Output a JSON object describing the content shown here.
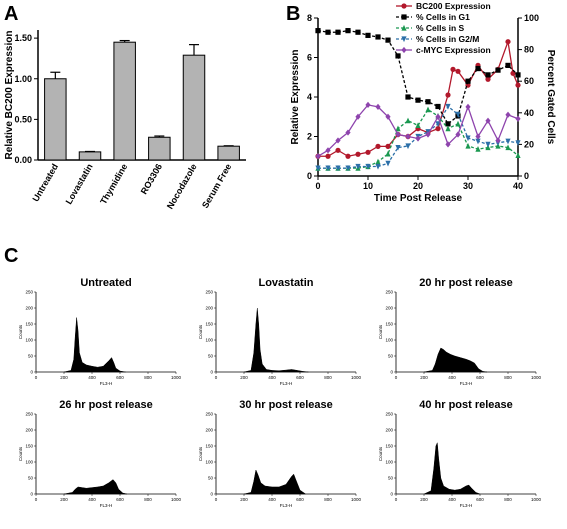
{
  "panel_labels": {
    "a": "A",
    "b": "B",
    "c": "C"
  },
  "chart_data": [
    {
      "type": "bar",
      "panel": "A",
      "categories": [
        "Untreated",
        "Lovastatin",
        "Thymidine",
        "RO3306",
        "Nocodazole",
        "Serum Free"
      ],
      "values": [
        1.0,
        0.1,
        1.45,
        0.28,
        1.29,
        0.17
      ],
      "errors": [
        0.08,
        0.005,
        0.02,
        0.015,
        0.13,
        0.005
      ],
      "ylabel": "Relative  BC200 Expression",
      "ylim": [
        0,
        1.6
      ],
      "yticks": [
        "0.00",
        "0.50",
        "1.00",
        "1.50"
      ],
      "colors": {
        "bar": "#b3b3b3",
        "stroke": "#000000"
      }
    },
    {
      "type": "line",
      "panel": "B",
      "xlabel": "Time Post Release",
      "ylabel_left": "Relative  Expression",
      "ylabel_right": "Percent Gated Cells",
      "xlim": [
        0,
        40
      ],
      "ylim_left": [
        0,
        8
      ],
      "ylim_right": [
        0,
        100
      ],
      "xticks": [
        "0",
        "10",
        "20",
        "30",
        "40"
      ],
      "yticks_left": [
        "0",
        "2",
        "4",
        "6",
        "8"
      ],
      "yticks_right": [
        "0",
        "20",
        "40",
        "60",
        "80",
        "100"
      ],
      "legend_position": "top-right",
      "series": [
        {
          "name": "BC200 Expression",
          "axis": "left",
          "color": "#b2182b",
          "marker": "circle",
          "x": [
            0,
            2,
            4,
            6,
            8,
            10,
            12,
            14,
            16,
            18,
            20,
            22,
            24,
            26,
            27,
            28,
            30,
            32,
            34,
            36,
            38,
            39,
            40
          ],
          "y": [
            1.0,
            1.0,
            1.3,
            1.0,
            1.1,
            1.2,
            1.5,
            1.5,
            2.1,
            2.0,
            2.4,
            2.2,
            2.4,
            4.1,
            5.4,
            5.3,
            4.6,
            5.6,
            4.9,
            5.4,
            6.8,
            5.2,
            4.6
          ]
        },
        {
          "name": "% Cells in G1",
          "axis": "right",
          "color": "#000000",
          "marker": "square",
          "x": [
            0,
            2,
            4,
            6,
            8,
            10,
            12,
            14,
            16,
            18,
            20,
            22,
            24,
            26,
            28,
            30,
            32,
            34,
            36,
            38,
            40
          ],
          "y": [
            92,
            91,
            91,
            92,
            91,
            89,
            88,
            86,
            76,
            50,
            48,
            47,
            44,
            33,
            38,
            60,
            68,
            64,
            67,
            70,
            64
          ]
        },
        {
          "name": "% Cells in S",
          "axis": "right",
          "color": "#1a9850",
          "marker": "triangle",
          "x": [
            0,
            2,
            4,
            6,
            8,
            10,
            12,
            14,
            16,
            18,
            20,
            22,
            24,
            26,
            28,
            30,
            32,
            34,
            36,
            38,
            40
          ],
          "y": [
            5,
            5,
            5,
            5,
            5,
            6,
            9,
            14,
            30,
            35,
            32,
            42,
            38,
            30,
            33,
            19,
            17,
            18,
            19,
            18,
            13
          ]
        },
        {
          "name": "% Cells in G2/M",
          "axis": "right",
          "color": "#2b6fa8",
          "marker": "triangle-down",
          "x": [
            0,
            2,
            4,
            6,
            8,
            10,
            12,
            14,
            16,
            18,
            20,
            22,
            24,
            26,
            28,
            30,
            32,
            34,
            36,
            38,
            40
          ],
          "y": [
            5,
            5,
            5,
            5,
            6,
            6,
            6,
            8,
            18,
            19,
            25,
            28,
            33,
            44,
            39,
            24,
            22,
            20,
            21,
            22,
            21
          ]
        },
        {
          "name": "c-MYC Expression",
          "axis": "left",
          "color": "#8e44ad",
          "marker": "diamond",
          "x": [
            0,
            2,
            4,
            6,
            8,
            10,
            12,
            14,
            16,
            18,
            20,
            22,
            24,
            26,
            28,
            30,
            32,
            34,
            36,
            38,
            40
          ],
          "y": [
            1.0,
            1.3,
            1.8,
            2.2,
            3.0,
            3.6,
            3.5,
            3.0,
            2.1,
            2.0,
            1.9,
            2.1,
            3.0,
            1.6,
            2.1,
            3.5,
            2.0,
            2.8,
            1.8,
            3.1,
            2.9
          ]
        }
      ]
    },
    {
      "type": "area",
      "panel": "C",
      "xlabel": "FL3-H",
      "ylabel": "Counts",
      "xlim": [
        0,
        1000
      ],
      "ylim": [
        0,
        250
      ],
      "xticks": [
        "0",
        "200",
        "400",
        "600",
        "800",
        "1000"
      ],
      "yticks": [
        "0",
        "50",
        "100",
        "150",
        "200",
        "250"
      ],
      "plots": [
        {
          "title": "Untreated",
          "points": [
            [
              200,
              0
            ],
            [
              250,
              5
            ],
            [
              270,
              40
            ],
            [
              280,
              110
            ],
            [
              290,
              170
            ],
            [
              300,
              130
            ],
            [
              310,
              60
            ],
            [
              330,
              30
            ],
            [
              360,
              22
            ],
            [
              400,
              18
            ],
            [
              440,
              15
            ],
            [
              480,
              18
            ],
            [
              520,
              35
            ],
            [
              540,
              45
            ],
            [
              555,
              30
            ],
            [
              570,
              12
            ],
            [
              600,
              3
            ],
            [
              640,
              0
            ]
          ]
        },
        {
          "title": "Lovastatin",
          "points": [
            [
              200,
              0
            ],
            [
              250,
              5
            ],
            [
              270,
              60
            ],
            [
              285,
              150
            ],
            [
              295,
              200
            ],
            [
              305,
              150
            ],
            [
              315,
              70
            ],
            [
              330,
              25
            ],
            [
              360,
              8
            ],
            [
              400,
              5
            ],
            [
              450,
              4
            ],
            [
              500,
              6
            ],
            [
              540,
              8
            ],
            [
              580,
              5
            ],
            [
              620,
              2
            ],
            [
              660,
              0
            ]
          ]
        },
        {
          "title": "20 hr post release",
          "points": [
            [
              200,
              0
            ],
            [
              260,
              5
            ],
            [
              280,
              25
            ],
            [
              300,
              55
            ],
            [
              320,
              75
            ],
            [
              340,
              70
            ],
            [
              360,
              62
            ],
            [
              390,
              55
            ],
            [
              420,
              50
            ],
            [
              460,
              45
            ],
            [
              500,
              40
            ],
            [
              530,
              35
            ],
            [
              560,
              28
            ],
            [
              590,
              10
            ],
            [
              620,
              2
            ],
            [
              650,
              0
            ]
          ]
        },
        {
          "title": "26 hr post release",
          "points": [
            [
              200,
              0
            ],
            [
              260,
              5
            ],
            [
              280,
              15
            ],
            [
              300,
              22
            ],
            [
              330,
              20
            ],
            [
              360,
              18
            ],
            [
              400,
              20
            ],
            [
              440,
              22
            ],
            [
              480,
              25
            ],
            [
              520,
              35
            ],
            [
              550,
              45
            ],
            [
              570,
              35
            ],
            [
              590,
              15
            ],
            [
              620,
              3
            ],
            [
              650,
              0
            ]
          ]
        },
        {
          "title": "30 hr post release",
          "points": [
            [
              200,
              0
            ],
            [
              250,
              5
            ],
            [
              270,
              40
            ],
            [
              285,
              75
            ],
            [
              300,
              60
            ],
            [
              320,
              35
            ],
            [
              350,
              25
            ],
            [
              400,
              22
            ],
            [
              450,
              22
            ],
            [
              500,
              30
            ],
            [
              540,
              55
            ],
            [
              555,
              62
            ],
            [
              570,
              45
            ],
            [
              600,
              12
            ],
            [
              640,
              0
            ]
          ]
        },
        {
          "title": "40 hr post release",
          "points": [
            [
              200,
              0
            ],
            [
              250,
              10
            ],
            [
              270,
              80
            ],
            [
              285,
              150
            ],
            [
              295,
              160
            ],
            [
              305,
              110
            ],
            [
              320,
              50
            ],
            [
              340,
              25
            ],
            [
              380,
              15
            ],
            [
              420,
              12
            ],
            [
              460,
              15
            ],
            [
              500,
              25
            ],
            [
              520,
              28
            ],
            [
              540,
              18
            ],
            [
              570,
              5
            ],
            [
              600,
              0
            ]
          ]
        }
      ]
    }
  ]
}
